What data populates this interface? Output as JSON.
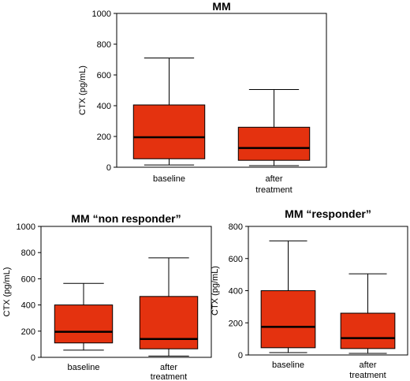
{
  "chart_data": [
    {
      "type": "box",
      "title": "MM",
      "ylabel": "CTX (pg/mL)",
      "ylim": [
        0,
        1000
      ],
      "yticks": [
        "0",
        "200",
        "400",
        "600",
        "800",
        "1000"
      ],
      "categories": [
        "baseline",
        "after treatment"
      ],
      "boxes": [
        {
          "min": 15,
          "q1": 55,
          "median": 195,
          "q3": 405,
          "max": 710
        },
        {
          "min": 10,
          "q1": 45,
          "median": 125,
          "q3": 260,
          "max": 505
        }
      ],
      "box_color": "#e4320f"
    },
    {
      "type": "box",
      "title": "MM “non responder”",
      "ylabel": "CTX (pg/mL)",
      "ylim": [
        0,
        1000
      ],
      "yticks": [
        "0",
        "200",
        "400",
        "600",
        "800",
        "1000"
      ],
      "categories": [
        "baseline",
        "after treatment"
      ],
      "boxes": [
        {
          "min": 55,
          "q1": 110,
          "median": 195,
          "q3": 400,
          "max": 565
        },
        {
          "min": 10,
          "q1": 65,
          "median": 140,
          "q3": 465,
          "max": 760
        }
      ],
      "box_color": "#e4320f"
    },
    {
      "type": "box",
      "title": "MM “responder”",
      "ylabel": "CTX (pg/mL)",
      "ylim": [
        0,
        800
      ],
      "yticks": [
        "0",
        "200",
        "400",
        "600",
        "800"
      ],
      "categories": [
        "baseline",
        "after treatment"
      ],
      "boxes": [
        {
          "min": 15,
          "q1": 45,
          "median": 175,
          "q3": 400,
          "max": 710
        },
        {
          "min": 10,
          "q1": 40,
          "median": 105,
          "q3": 260,
          "max": 505
        }
      ],
      "box_color": "#e4320f"
    }
  ]
}
